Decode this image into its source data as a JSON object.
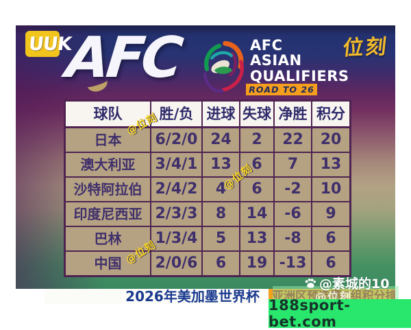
{
  "header": {
    "uuk_logo_text": "UUK",
    "afc_logo_text": "AFC",
    "aq_lines": [
      "AFC",
      "ASIAN",
      "QUALIFIERS"
    ],
    "road_banner": "ROAD TO 26",
    "stamp": "位刻"
  },
  "chart_data": {
    "type": "table",
    "title": "2026年美加墨世界杯 亚洲区预选赛C组积分排名",
    "columns": [
      "球队",
      "胜/负",
      "进球",
      "失球",
      "净胜",
      "积分"
    ],
    "rows": [
      [
        "日本",
        "6/2/0",
        "24",
        "2",
        "22",
        "20"
      ],
      [
        "澳大利亚",
        "3/4/1",
        "13",
        "6",
        "7",
        "13"
      ],
      [
        "沙特阿拉伯",
        "2/4/2",
        "4",
        "6",
        "-2",
        "10"
      ],
      [
        "印度尼西亚",
        "2/3/3",
        "8",
        "14",
        "-6",
        "9"
      ],
      [
        "巴林",
        "1/3/4",
        "5",
        "13",
        "-8",
        "6"
      ],
      [
        "中国",
        "2/0/6",
        "6",
        "19",
        "-13",
        "6"
      ]
    ]
  },
  "watermarks": {
    "wm1": "@位刻",
    "wm2": "@位刻",
    "wm3": "@位刻",
    "user": "@素城的10",
    "faint": "@位刻"
  },
  "footer": {
    "banner_left": "2026年美加墨世界杯",
    "banner_right": "亚洲区预选赛C组积分排名",
    "site": "188sport-bet.com"
  },
  "colors": {
    "accent_gold": "#f2bb2b",
    "table_border": "#4e2351",
    "cell_bg": "#b5a283",
    "banner_orange": "#f0a11f",
    "site_green": "#29e76d",
    "watermark_yellow": "#ffd91f",
    "poster_top_navy": "#243271",
    "poster_bottom_green": "#3a8a60"
  }
}
